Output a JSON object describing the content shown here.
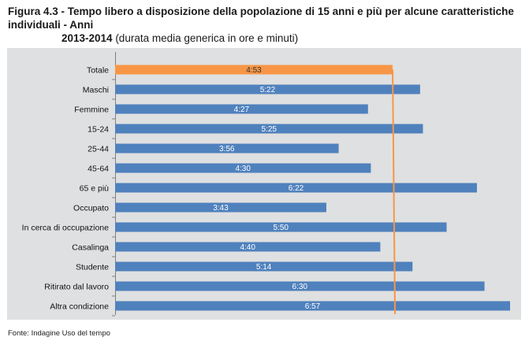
{
  "title": {
    "prefix": "Figura 4.3 - ",
    "main_line1": "Tempo libero a disposizione della popolazione di 15 anni e più per alcune caratteristiche individuali - Anni",
    "main_line2": "2013-2014",
    "subtitle": " (durata media generica in ore e minuti)"
  },
  "source": "Fonte: Indagine Uso del tempo",
  "colors": {
    "bar": "#4f81bd",
    "highlight": "#f79646",
    "label_on_bar": "#ffffff",
    "label_on_highlight": "#333333",
    "plot_bg": "#dfe0e1"
  },
  "chart_data": {
    "type": "bar",
    "orientation": "horizontal",
    "unit": "hours:minutes",
    "categories": [
      "Totale",
      "Maschi",
      "Femmine",
      "15-24",
      "25-44",
      "45-64",
      "65 e più",
      "Occupato",
      "In cerca di occupazione",
      "Casalinga",
      "Studente",
      "Ritirato dal lavoro",
      "Altra condizione"
    ],
    "labels": [
      "4:53",
      "5:22",
      "4:27",
      "5:25",
      "3:56",
      "4:30",
      "6:22",
      "3:43",
      "5:50",
      "4:40",
      "5:14",
      "6:30",
      "6:57"
    ],
    "values_minutes": [
      293,
      322,
      267,
      325,
      236,
      270,
      382,
      223,
      350,
      280,
      314,
      390,
      417
    ],
    "highlight_index": 0,
    "reference_line_minutes": 293,
    "xlim_minutes": [
      0,
      417
    ],
    "grid": false,
    "legend": "none"
  }
}
